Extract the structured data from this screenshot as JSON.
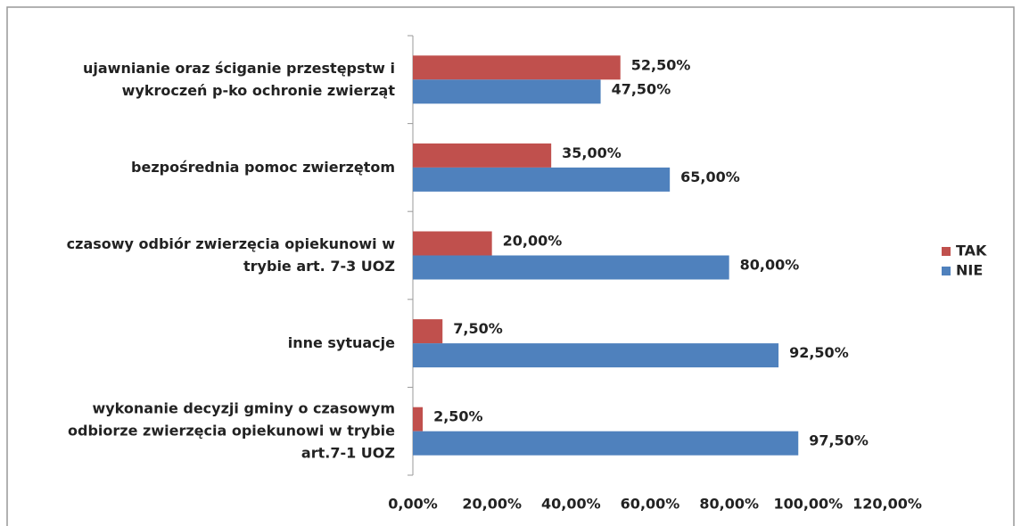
{
  "chart_data": {
    "type": "bar",
    "orientation": "horizontal",
    "categories": [
      "ujawnianie oraz ściganie przestępstw i\nwykroczeń p-ko ochronie zwierząt",
      "bezpośrednia pomoc zwierzętom",
      "czasowy odbiór zwierzęcia opiekunowi w\ntrybie art. 7-3 UOZ",
      "inne sytuacje",
      "wykonanie decyzji gminy o czasowym\nodbiorze zwierzęcia opiekunowi w trybie\nart.7-1 UOZ"
    ],
    "series": [
      {
        "name": "TAK",
        "color": "#c0504d",
        "values": [
          52.5,
          35,
          20,
          7.5,
          2.5
        ],
        "value_labels": [
          "52,50%",
          "35,00%",
          "20,00%",
          "7,50%",
          "2,50%"
        ]
      },
      {
        "name": "NIE",
        "color": "#4f81bd",
        "values": [
          47.5,
          65,
          80,
          92.5,
          97.5
        ],
        "value_labels": [
          "47,50%",
          "65,00%",
          "80,00%",
          "92,50%",
          "97,50%"
        ]
      }
    ],
    "xlim": [
      0,
      120
    ],
    "xticks": [
      {
        "value": 0,
        "label": "0,00%"
      },
      {
        "value": 20,
        "label": "20,00%"
      },
      {
        "value": 40,
        "label": "40,00%"
      },
      {
        "value": 60,
        "label": "60,00%"
      },
      {
        "value": 80,
        "label": "80,00%"
      },
      {
        "value": 100,
        "label": "100,00%"
      },
      {
        "value": 120,
        "label": "120,00%"
      }
    ],
    "legend": "right"
  }
}
